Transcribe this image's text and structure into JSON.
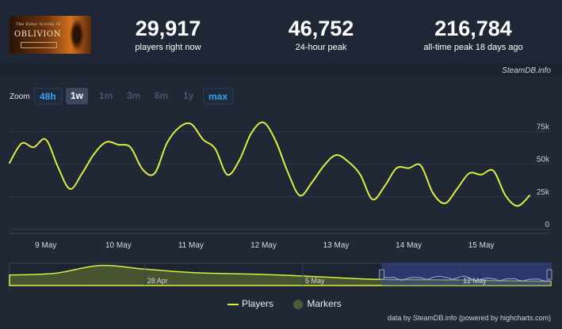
{
  "game": {
    "logo_subtitle": "The Elder Scrolls IV",
    "logo_title": "OBLIVION"
  },
  "stats": [
    {
      "value": "29,917",
      "label": "players right now"
    },
    {
      "value": "46,752",
      "label": "24-hour peak"
    },
    {
      "value": "216,784",
      "label": "all-time peak 18 days ago"
    }
  ],
  "watermark": "SteamDB.info",
  "zoom": {
    "label": "Zoom",
    "buttons": [
      {
        "label": "48h",
        "state": "link"
      },
      {
        "label": "1w",
        "state": "active"
      },
      {
        "label": "1m",
        "state": "disabled"
      },
      {
        "label": "3m",
        "state": "disabled"
      },
      {
        "label": "6m",
        "state": "disabled"
      },
      {
        "label": "1y",
        "state": "disabled"
      },
      {
        "label": "max",
        "state": "link"
      }
    ]
  },
  "legend": {
    "players": "Players",
    "markers": "Markers"
  },
  "footer_credit": "data by SteamDB.info (powered by highcharts.com)",
  "colors": {
    "line": "#dced42",
    "background": "#1b2230",
    "panel": "#202735",
    "accent": "#35a3ea",
    "navigator_selection": "#3a4a9a"
  },
  "chart_data": {
    "type": "line",
    "series": [
      {
        "name": "Players",
        "unit": "players"
      }
    ],
    "x_axis": {
      "type": "datetime",
      "tick_labels": [
        "9 May",
        "10 May",
        "11 May",
        "12 May",
        "13 May",
        "14 May",
        "15 May"
      ]
    },
    "y_axis": {
      "tick_labels": [
        "0",
        "25k",
        "50k",
        "75k"
      ],
      "ticks": [
        0,
        25000,
        50000,
        75000
      ],
      "range": [
        0,
        85000
      ],
      "position": "right"
    },
    "points": [
      [
        "2025-05-08T12:00",
        51000
      ],
      [
        "2025-05-08T16:00",
        66000
      ],
      [
        "2025-05-08T20:00",
        63000
      ],
      [
        "2025-05-09T00:00",
        69000
      ],
      [
        "2025-05-09T04:00",
        48000
      ],
      [
        "2025-05-09T08:00",
        31000
      ],
      [
        "2025-05-09T12:00",
        43000
      ],
      [
        "2025-05-09T16:00",
        58000
      ],
      [
        "2025-05-09T20:00",
        67000
      ],
      [
        "2025-05-10T00:00",
        65000
      ],
      [
        "2025-05-10T04:00",
        63000
      ],
      [
        "2025-05-10T08:00",
        46000
      ],
      [
        "2025-05-10T12:00",
        43000
      ],
      [
        "2025-05-10T16:00",
        66000
      ],
      [
        "2025-05-10T20:00",
        78000
      ],
      [
        "2025-05-11T00:00",
        81000
      ],
      [
        "2025-05-11T04:00",
        69000
      ],
      [
        "2025-05-11T08:00",
        62000
      ],
      [
        "2025-05-11T12:00",
        42000
      ],
      [
        "2025-05-11T16:00",
        53000
      ],
      [
        "2025-05-11T20:00",
        74000
      ],
      [
        "2025-05-12T00:00",
        82000
      ],
      [
        "2025-05-12T04:00",
        68000
      ],
      [
        "2025-05-12T08:00",
        44000
      ],
      [
        "2025-05-12T12:00",
        26000
      ],
      [
        "2025-05-12T16:00",
        36000
      ],
      [
        "2025-05-12T20:00",
        49000
      ],
      [
        "2025-05-13T00:00",
        57000
      ],
      [
        "2025-05-13T04:00",
        52000
      ],
      [
        "2025-05-13T08:00",
        42000
      ],
      [
        "2025-05-13T12:00",
        23000
      ],
      [
        "2025-05-13T16:00",
        33000
      ],
      [
        "2025-05-13T20:00",
        47000
      ],
      [
        "2025-05-14T00:00",
        47000
      ],
      [
        "2025-05-14T04:00",
        49000
      ],
      [
        "2025-05-14T08:00",
        28000
      ],
      [
        "2025-05-14T12:00",
        20000
      ],
      [
        "2025-05-14T16:00",
        31000
      ],
      [
        "2025-05-14T20:00",
        43000
      ],
      [
        "2025-05-15T00:00",
        42000
      ],
      [
        "2025-05-15T04:00",
        45000
      ],
      [
        "2025-05-15T08:00",
        26000
      ],
      [
        "2025-05-15T12:00",
        18000
      ],
      [
        "2025-05-15T16:00",
        26000
      ]
    ],
    "navigator": {
      "labels": [
        "28 Apr",
        "5 May",
        "12 May"
      ],
      "profile": [
        [
          "2025-04-22",
          0.5
        ],
        [
          "2025-04-24",
          0.58
        ],
        [
          "2025-04-26",
          0.95
        ],
        [
          "2025-04-28",
          0.78
        ],
        [
          "2025-04-30",
          0.62
        ],
        [
          "2025-05-02",
          0.56
        ],
        [
          "2025-05-04",
          0.5
        ],
        [
          "2025-05-06",
          0.4
        ],
        [
          "2025-05-08",
          0.3
        ],
        [
          "2025-05-10",
          0.28
        ],
        [
          "2025-05-12",
          0.26
        ],
        [
          "2025-05-14",
          0.22
        ],
        [
          "2025-05-16",
          0.2
        ]
      ],
      "selected_range": [
        "2025-05-08T12:00",
        "2025-05-16T00:00"
      ]
    }
  }
}
